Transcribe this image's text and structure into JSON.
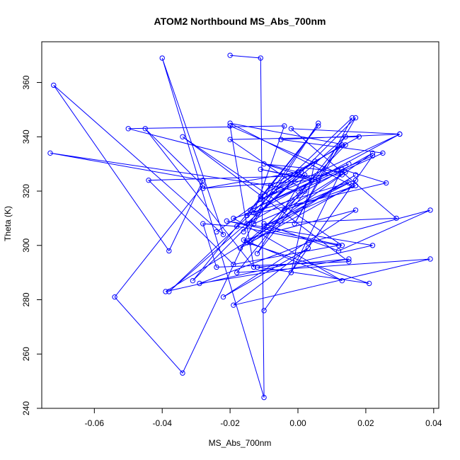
{
  "chart_data": {
    "type": "scatter",
    "title": "ATOM2 Northbound MS_Abs_700nm",
    "xlabel": "MS_Abs_700nm",
    "ylabel": "Theta (K)",
    "xlim": [
      -0.0755,
      0.0415
    ],
    "ylim": [
      240,
      375
    ],
    "xticks": [
      -0.06,
      -0.04,
      -0.02,
      0.0,
      0.02,
      0.04
    ],
    "xtick_labels": [
      "-0.06",
      "-0.04",
      "-0.02",
      "0.00",
      "0.02",
      "0.04"
    ],
    "yticks": [
      240,
      260,
      280,
      300,
      320,
      340,
      360
    ],
    "ytick_labels": [
      "240",
      "260",
      "280",
      "300",
      "320",
      "340",
      "360"
    ],
    "grid": false,
    "series_color": "#0000ff",
    "connected": true,
    "series": [
      {
        "x": [
          -0.02,
          -0.011,
          -0.01,
          -0.04,
          -0.022,
          -0.072,
          -0.038,
          -0.028,
          -0.073,
          -0.008,
          -0.034,
          -0.054,
          -0.028,
          -0.045,
          -0.013,
          -0.02,
          0.013,
          -0.044,
          -0.019,
          0.012,
          -0.018,
          -0.028,
          -0.024,
          0.015,
          -0.034,
          0.013,
          -0.021,
          0.022,
          -0.039,
          0.017,
          -0.014,
          0.014,
          -0.02,
          0.016,
          -0.017,
          0.002,
          -0.02,
          0.018,
          -0.008,
          0.0,
          0.025,
          -0.005,
          0.03,
          -0.002,
          0.029,
          -0.01,
          0.012,
          0.039,
          0.003,
          -0.029,
          0.015,
          -0.012,
          0.021,
          -0.015,
          0.022,
          -0.015,
          0.001,
          -0.024,
          -0.007,
          0.002,
          -0.012,
          0.013,
          -0.011,
          0.005,
          -0.002,
          0.013,
          0.026,
          -0.015,
          0.006,
          -0.031,
          0.017,
          -0.001,
          0.016,
          -0.038,
          0.014,
          -0.018,
          0.039,
          -0.019,
          0.003,
          -0.022,
          0.017,
          -0.016,
          0.013,
          -0.019,
          0.017,
          -0.01,
          0.022,
          -0.014,
          0.015,
          -0.011,
          0.03,
          -0.013,
          -0.004,
          -0.05,
          0.0,
          -0.028,
          0.004,
          -0.011,
          0.006,
          -0.01,
          0.014,
          -0.004,
          0.017,
          -0.01,
          0.015,
          -0.013,
          0.006,
          -0.016
        ],
        "y": [
          370,
          369,
          244,
          369,
          304,
          359,
          298,
          324,
          334,
          322,
          253,
          281,
          322,
          343,
          292,
          344,
          326,
          324,
          293,
          300,
          307,
          308,
          292,
          294,
          340,
          300,
          309,
          300,
          283,
          326,
          301,
          337,
          345,
          322,
          299,
          320,
          339,
          340,
          322,
          320,
          334,
          339,
          341,
          343,
          310,
          308,
          298,
          313,
          301,
          286,
          295,
          292,
          286,
          301,
          334,
          308,
          327,
          305,
          320,
          326,
          297,
          337,
          318,
          331,
          290,
          328,
          323,
          311,
          344,
          287,
          347,
          308,
          347,
          283,
          340,
          290,
          295,
          278,
          299,
          281,
          313,
          302,
          287,
          310,
          324,
          276,
          333,
          313,
          330,
          317,
          341,
          312,
          344,
          343,
          327,
          321,
          324,
          328,
          324,
          330,
          327,
          313,
          322,
          307,
          323,
          308,
          345,
          305
        ]
      }
    ]
  }
}
